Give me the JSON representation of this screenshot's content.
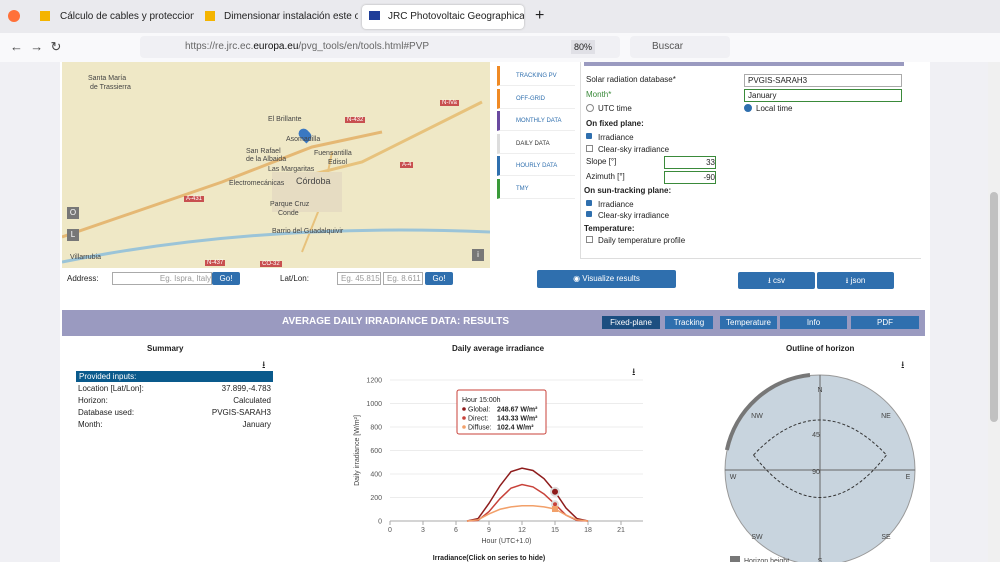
{
  "browser": {
    "tabs": [
      "Cálculo de cables y protecciones",
      "Dimensionar instalación este oeste",
      "JRC Photovoltaic Geographical"
    ],
    "url_prefix": "https://re.jrc.ec.",
    "url_domain": "europa.eu",
    "url_suffix": "/pvg_tools/en/tools.html#PVP",
    "zoom": "80%",
    "search": "Buscar"
  },
  "map": {
    "labels": [
      "Santa María",
      "de Trassierra",
      "El Brillante",
      "Asomadilla",
      "San Rafael",
      "de la Albaida",
      "Las Margaritas",
      "Fuensantilla",
      "Edisol",
      "Electromecánicas",
      "Córdoba",
      "Parque Cruz",
      "Conde",
      "Barrio del Guadalquivir",
      "Villarrubia",
      "A-431",
      "N-432",
      "N-IVa",
      "A-4",
      "N-437",
      "CO-32"
    ],
    "zoom_button": "O",
    "layer_button": "L",
    "info_button": "i"
  },
  "address": {
    "label": "Address:",
    "placeholder": "Eg. Ispra, Italy",
    "go": "Go!",
    "latlon_label": "Lat/Lon:",
    "lat_placeholder": "Eg. 45.815",
    "lon_placeholder": "Eg. 8.611",
    "go2": "Go!"
  },
  "tabs": [
    "TRACKING PV",
    "OFF-GRID",
    "MONTHLY DATA",
    "DAILY DATA",
    "HOURLY DATA",
    "TMY"
  ],
  "form": {
    "database_label": "Solar radiation database*",
    "database_value": "PVGIS-SARAH3",
    "month_label": "Month*",
    "month_value": "January",
    "utc_time": "UTC time",
    "local_time": "Local time",
    "fixed_plane": "On fixed plane:",
    "fixed_irradiance": "Irradiance",
    "fixed_clear_sky": "Clear-sky irradiance",
    "slope_label": "Slope [°]",
    "slope_value": "33",
    "azimuth_label": "Azimuth [°]",
    "azimuth_value": "-90",
    "sun_tracking": "On sun-tracking plane:",
    "tracking_irradiance": "Irradiance",
    "tracking_clear_sky": "Clear-sky irradiance",
    "temperature": "Temperature:",
    "temperature_profile": "Daily temperature profile"
  },
  "buttons": {
    "visualize": "Visualize results",
    "csv": "csv",
    "json": "json"
  },
  "results": {
    "title": "AVERAGE DAILY IRRADIANCE DATA: RESULTS",
    "tabs": [
      "Fixed-plane",
      "Tracking",
      "Temperature",
      "Info",
      "PDF"
    ]
  },
  "summary": {
    "title": "Summary",
    "header": "Provided inputs:",
    "rows": [
      [
        "Location [Lat/Lon]:",
        "37.899,-4.783"
      ],
      [
        "Horizon:",
        "Calculated"
      ],
      [
        "Database used:",
        "PVGIS-SARAH3"
      ],
      [
        "Month:",
        "January"
      ]
    ]
  },
  "chart_data": {
    "type": "line",
    "title": "Daily average irradiance",
    "ylabel": "Daily irradiance [W/m²]",
    "xlabel": "Hour (UTC+1.0)",
    "legend_title": "Irradiance(Click on series to hide)",
    "x": [
      7,
      8,
      9,
      10,
      11,
      12,
      13,
      14,
      15,
      16,
      17,
      18
    ],
    "xlim": [
      0,
      23
    ],
    "xticks": [
      0,
      3,
      6,
      9,
      12,
      15,
      18,
      21
    ],
    "ylim": [
      0,
      1200
    ],
    "yticks": [
      0,
      200,
      400,
      600,
      800,
      1000,
      1200
    ],
    "series": [
      {
        "name": "Global",
        "color": "#8e1c1c",
        "values": [
          0,
          20,
          150,
          300,
          420,
          450,
          430,
          360,
          249,
          110,
          20,
          0
        ]
      },
      {
        "name": "Direct",
        "color": "#c8423a",
        "values": [
          0,
          5,
          80,
          190,
          280,
          310,
          290,
          230,
          143,
          50,
          5,
          0
        ]
      },
      {
        "name": "Diffuse",
        "color": "#f2a06a",
        "values": [
          0,
          10,
          60,
          100,
          120,
          130,
          130,
          120,
          102,
          50,
          10,
          0
        ]
      }
    ],
    "tooltip": {
      "title": "Hour 15:00h",
      "lines": [
        [
          "Global:",
          "248.67 W/m²"
        ],
        [
          "Direct:",
          "143.33 W/m²"
        ],
        [
          "Diffuse:",
          "102.4 W/m²"
        ]
      ]
    }
  },
  "horizon": {
    "title": "Outline of horizon",
    "directions": [
      "N",
      "NE",
      "E",
      "SE",
      "S",
      "SW",
      "W",
      "NW"
    ],
    "rings": [
      "45",
      "90"
    ],
    "legend": "Horizon height"
  }
}
